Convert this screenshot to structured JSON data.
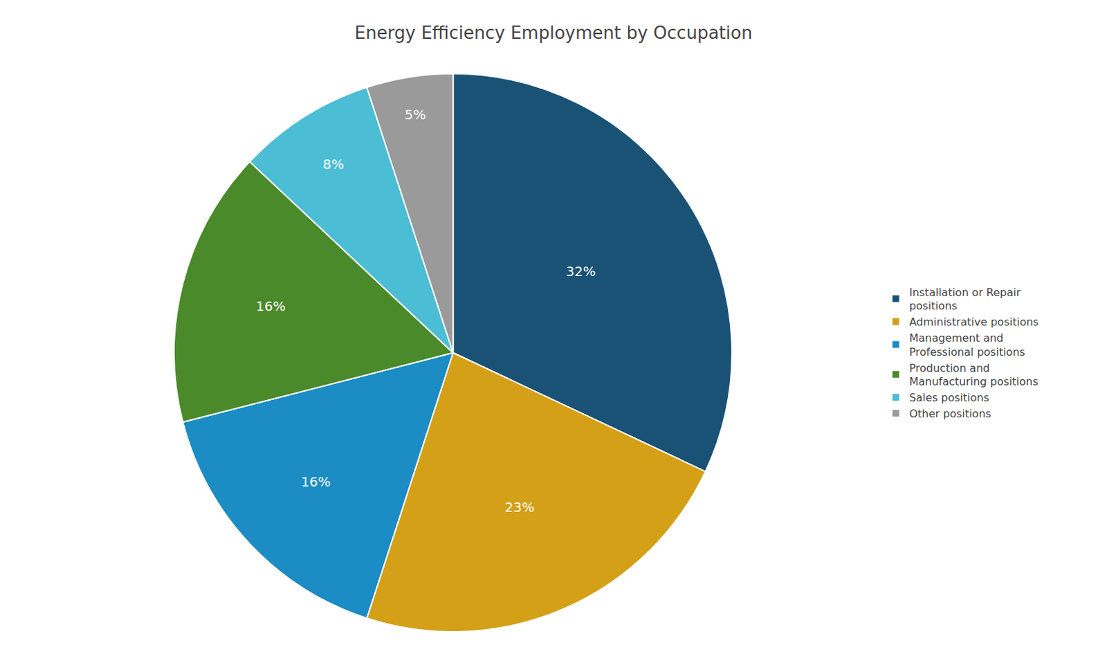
{
  "chart_data": {
    "type": "pie",
    "title": "Energy Efficiency Employment by Occupation",
    "categories": [
      "Installation or Repair\npositions",
      "Administrative positions",
      "Management and\nProfessional positions",
      "Production and\nManufacturing positions",
      "Sales positions",
      "Other positions"
    ],
    "values": [
      32,
      23,
      16,
      16,
      8,
      5
    ],
    "value_labels": [
      "32%",
      "23%",
      "16%",
      "16%",
      "8%",
      "5%"
    ],
    "colors": [
      "#1a5276",
      "#d4a017",
      "#1b8cc4",
      "#4a8a2a",
      "#4bbdd4",
      "#9a9a9a"
    ],
    "data_labels": true,
    "legend": "right"
  }
}
